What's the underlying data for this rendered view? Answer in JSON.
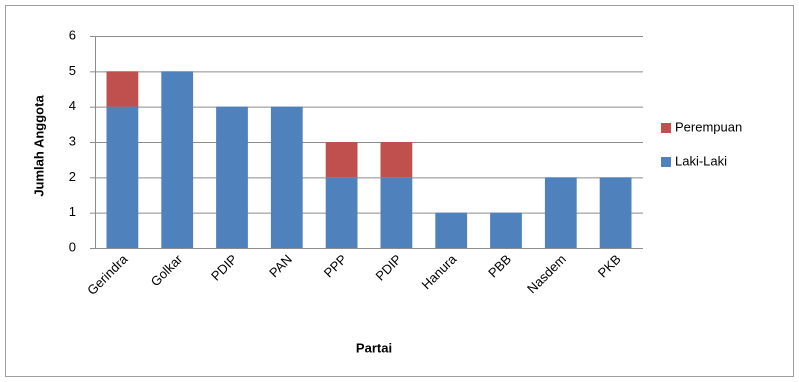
{
  "chart_data": {
    "type": "bar",
    "stacked": true,
    "title": "",
    "xlabel": "Partai",
    "ylabel": "Jumlah Anggota",
    "ylim": [
      0,
      6
    ],
    "yticks": [
      0,
      1,
      2,
      3,
      4,
      5,
      6
    ],
    "grid": true,
    "legend_position": "right",
    "categories": [
      "Gerindra",
      "Golkar",
      "PDIP",
      "PAN",
      "PPP",
      "PDIP",
      "Hanura",
      "PBB",
      "Nasdem",
      "PKB"
    ],
    "series": [
      {
        "name": "Laki-Laki",
        "color": "#4f81bd",
        "values": [
          4,
          5,
          4,
          4,
          2,
          2,
          1,
          1,
          2,
          2
        ]
      },
      {
        "name": "Perempuan",
        "color": "#c0504d",
        "values": [
          1,
          0,
          0,
          0,
          1,
          1,
          0,
          0,
          0,
          0
        ]
      }
    ],
    "legend_order": [
      "Perempuan",
      "Laki-Laki"
    ]
  }
}
